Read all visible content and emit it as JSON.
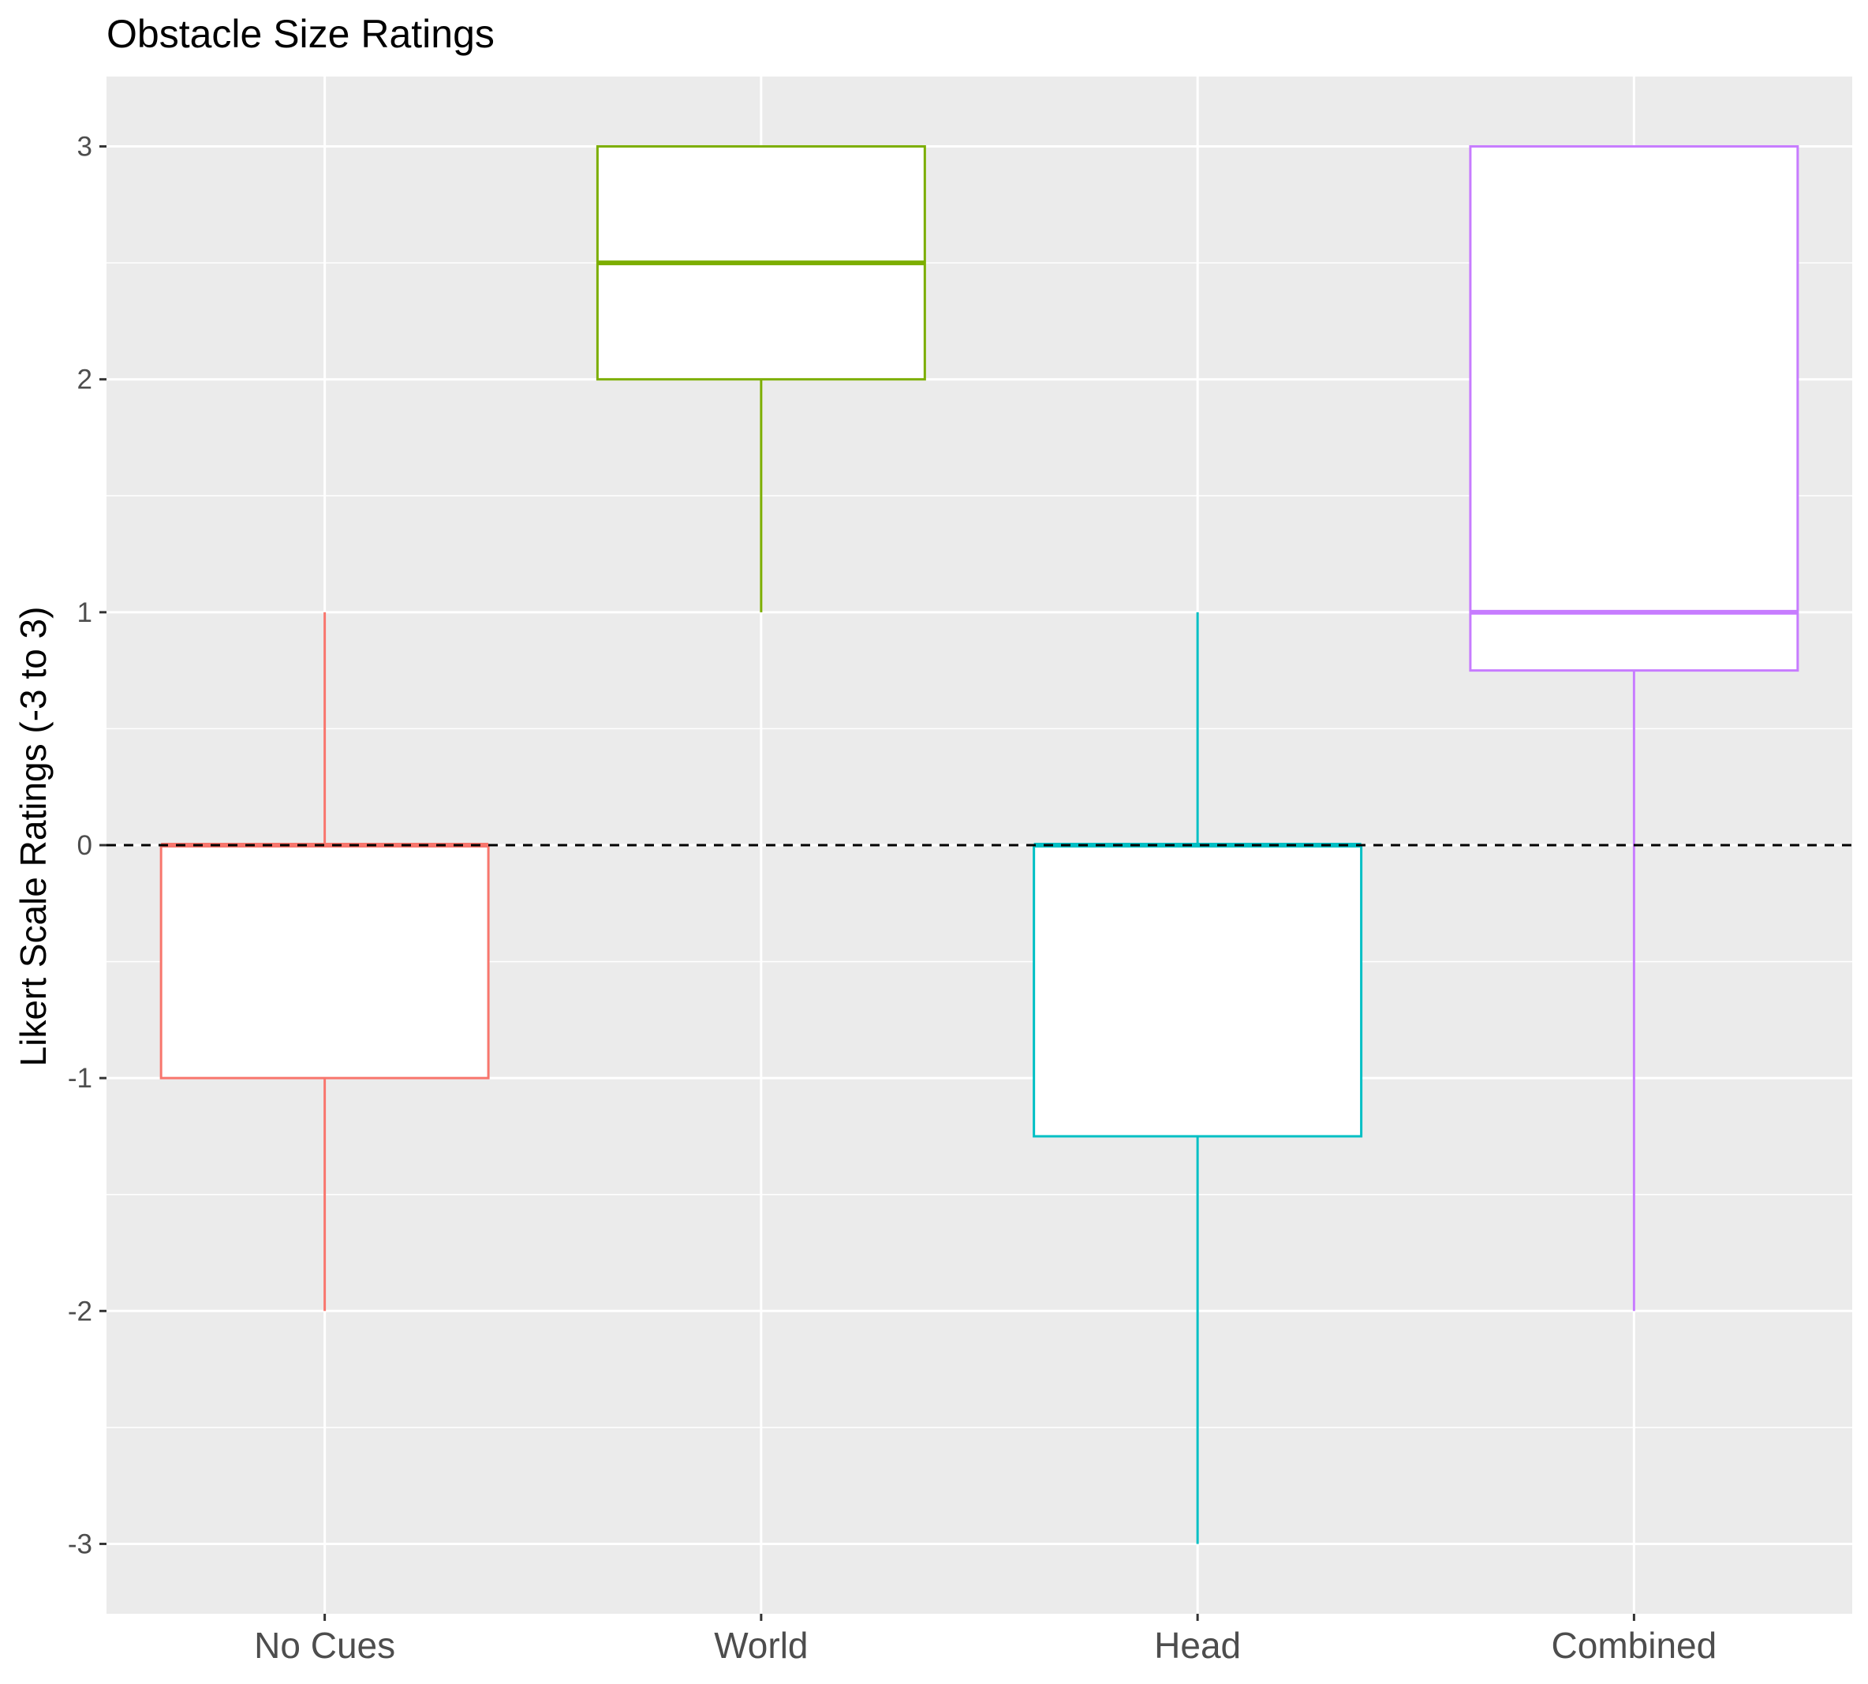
{
  "chart_data": {
    "type": "box",
    "title": "Obstacle Size Ratings",
    "xlabel": "",
    "ylabel": "Likert Scale Ratings (-3 to 3)",
    "ylim": [
      -3.3,
      3.3
    ],
    "y_ticks": [
      -3,
      -2,
      -1,
      0,
      1,
      2,
      3
    ],
    "y_tick_labels": [
      "-3",
      "-2",
      "-1",
      "0",
      "1",
      "2",
      "3"
    ],
    "grid": true,
    "reference_line": {
      "y": 0,
      "style": "dashed",
      "color": "#000000"
    },
    "categories": [
      "No Cues",
      "World",
      "Head",
      "Combined"
    ],
    "series": [
      {
        "category": "No Cues",
        "color": "#F8766D",
        "whisker_low": -2,
        "q1": -1,
        "median": 0,
        "q3": 0,
        "whisker_high": 1
      },
      {
        "category": "World",
        "color": "#7CAE00",
        "whisker_low": 1,
        "q1": 2,
        "median": 2.5,
        "q3": 3,
        "whisker_high": 3
      },
      {
        "category": "Head",
        "color": "#00BFC4",
        "whisker_low": -3,
        "q1": -1.25,
        "median": 0,
        "q3": 0,
        "whisker_high": 1
      },
      {
        "category": "Combined",
        "color": "#C77CFF",
        "whisker_low": -2,
        "q1": 0.75,
        "median": 1,
        "q3": 3,
        "whisker_high": 3
      }
    ],
    "colors": {
      "panel_background": "#EBEBEB",
      "grid": "#FFFFFF",
      "box_fill": "#FFFFFF"
    }
  }
}
